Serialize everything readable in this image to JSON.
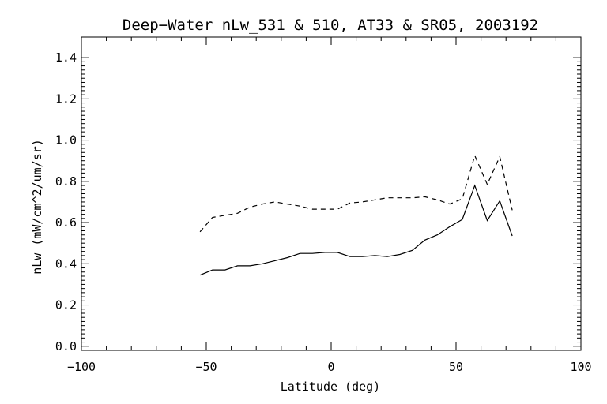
{
  "chart_data": {
    "type": "line",
    "title": "Deep−Water nLw_531 & 510, AT33 & SR05, 2003192",
    "xlabel": "Latitude (deg)",
    "ylabel": "nLw (mW/cm^2/um/sr)",
    "xlim": [
      -100,
      100
    ],
    "ylim": [
      -0.02,
      1.5
    ],
    "x_ticks": [
      -100,
      -50,
      0,
      50,
      100
    ],
    "x_tick_labels": [
      "−100",
      "−50",
      "0",
      "50",
      "100"
    ],
    "y_ticks": [
      0.0,
      0.2,
      0.4,
      0.6,
      0.8,
      1.0,
      1.2,
      1.4
    ],
    "y_tick_labels": [
      "0.0",
      "0.2",
      "0.4",
      "0.6",
      "0.8",
      "1.0",
      "1.2",
      "1.4"
    ],
    "grid": false,
    "legend": "none",
    "series": [
      {
        "style": "solid",
        "color": "#000000",
        "x": [
          -52.5,
          -47.5,
          -42.5,
          -37.5,
          -32.5,
          -27.5,
          -22.5,
          -17.5,
          -12.5,
          -7.5,
          -2.5,
          2.5,
          7.5,
          12.5,
          17.5,
          22.5,
          27.5,
          32.5,
          37.5,
          42.5,
          47.5,
          52.5,
          57.5,
          62.5,
          67.5,
          72.5
        ],
        "y": [
          0.345,
          0.37,
          0.37,
          0.39,
          0.39,
          0.4,
          0.415,
          0.43,
          0.45,
          0.45,
          0.455,
          0.455,
          0.435,
          0.435,
          0.44,
          0.435,
          0.445,
          0.465,
          0.515,
          0.54,
          0.58,
          0.615,
          0.78,
          0.61,
          0.705,
          0.535
        ]
      },
      {
        "style": "dashed",
        "color": "#000000",
        "x": [
          -52.5,
          -47.5,
          -42.5,
          -37.5,
          -32.5,
          -27.5,
          -22.5,
          -17.5,
          -12.5,
          -7.5,
          -2.5,
          2.5,
          7.5,
          12.5,
          17.5,
          22.5,
          27.5,
          32.5,
          37.5,
          42.5,
          47.5,
          52.5,
          57.5,
          62.5,
          67.5,
          72.5
        ],
        "y": [
          0.555,
          0.625,
          0.635,
          0.645,
          0.675,
          0.69,
          0.7,
          0.69,
          0.68,
          0.665,
          0.665,
          0.665,
          0.695,
          0.7,
          0.71,
          0.72,
          0.72,
          0.72,
          0.725,
          0.71,
          0.69,
          0.715,
          0.925,
          0.785,
          0.92,
          0.66
        ]
      }
    ]
  }
}
